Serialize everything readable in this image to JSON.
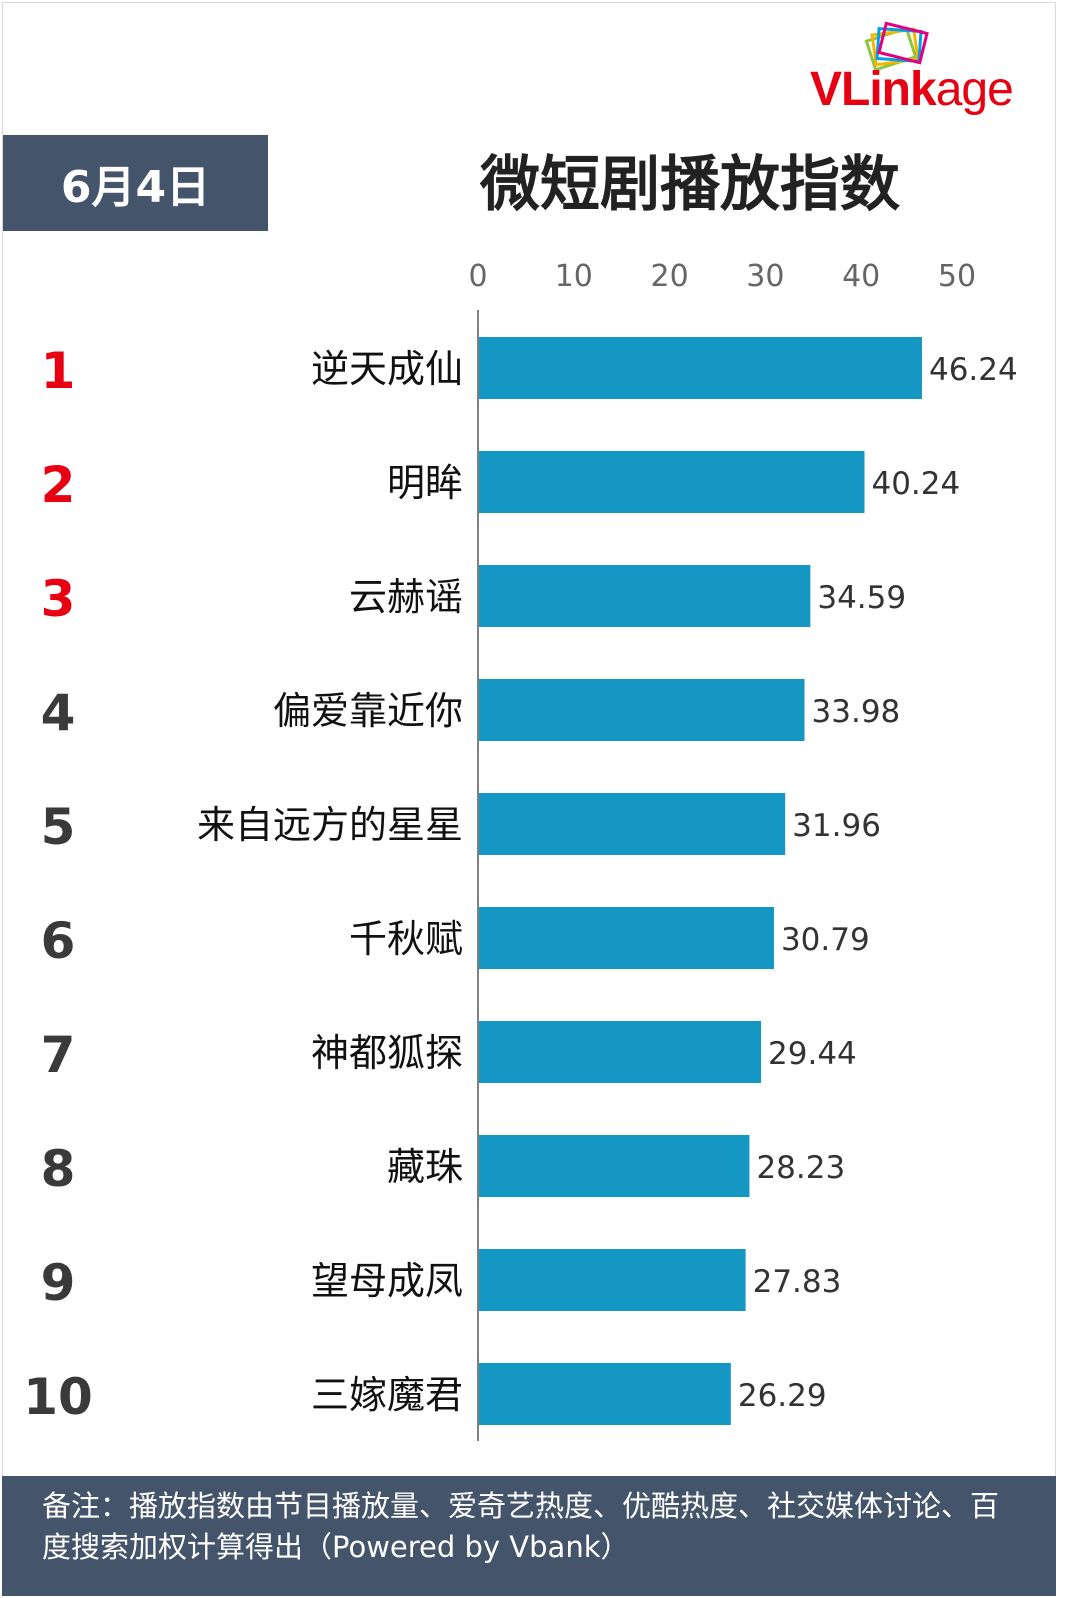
{
  "brand": {
    "logo_text_bold": "VLink",
    "logo_text_rest": "age"
  },
  "header": {
    "date": "6月4日",
    "title": "微短剧播放指数"
  },
  "footer": {
    "note": "备注：播放指数由节目播放量、爱奇艺热度、优酷热度、社交媒体讨论、百度搜索加权计算得出（Powered by Vbank）"
  },
  "colors": {
    "bar": "#1597c4",
    "top_rank": "#e60012",
    "rank": "#3a3a3a",
    "header_bg": "#44546a"
  },
  "chart_data": {
    "type": "bar",
    "orientation": "horizontal",
    "title": "微短剧播放指数",
    "ranks": [
      "1",
      "2",
      "3",
      "4",
      "5",
      "6",
      "7",
      "8",
      "9",
      "10"
    ],
    "categories": [
      "逆天成仙",
      "明眸",
      "云赫谣",
      "偏爱靠近你",
      "来自远方的星星",
      "千秋赋",
      "神都狐探",
      "藏珠",
      "望母成凤",
      "三嫁魔君"
    ],
    "values": [
      46.24,
      40.24,
      34.59,
      33.98,
      31.96,
      30.79,
      29.44,
      28.23,
      27.83,
      26.29
    ],
    "value_labels": [
      "46.24",
      "40.24",
      "34.59",
      "33.98",
      "31.96",
      "30.79",
      "29.44",
      "28.23",
      "27.83",
      "26.29"
    ],
    "xticks": [
      "0",
      "10",
      "20",
      "30",
      "40",
      "50"
    ],
    "xlim": [
      0,
      50
    ],
    "axis_position": "top",
    "grid": false,
    "legend": false
  }
}
